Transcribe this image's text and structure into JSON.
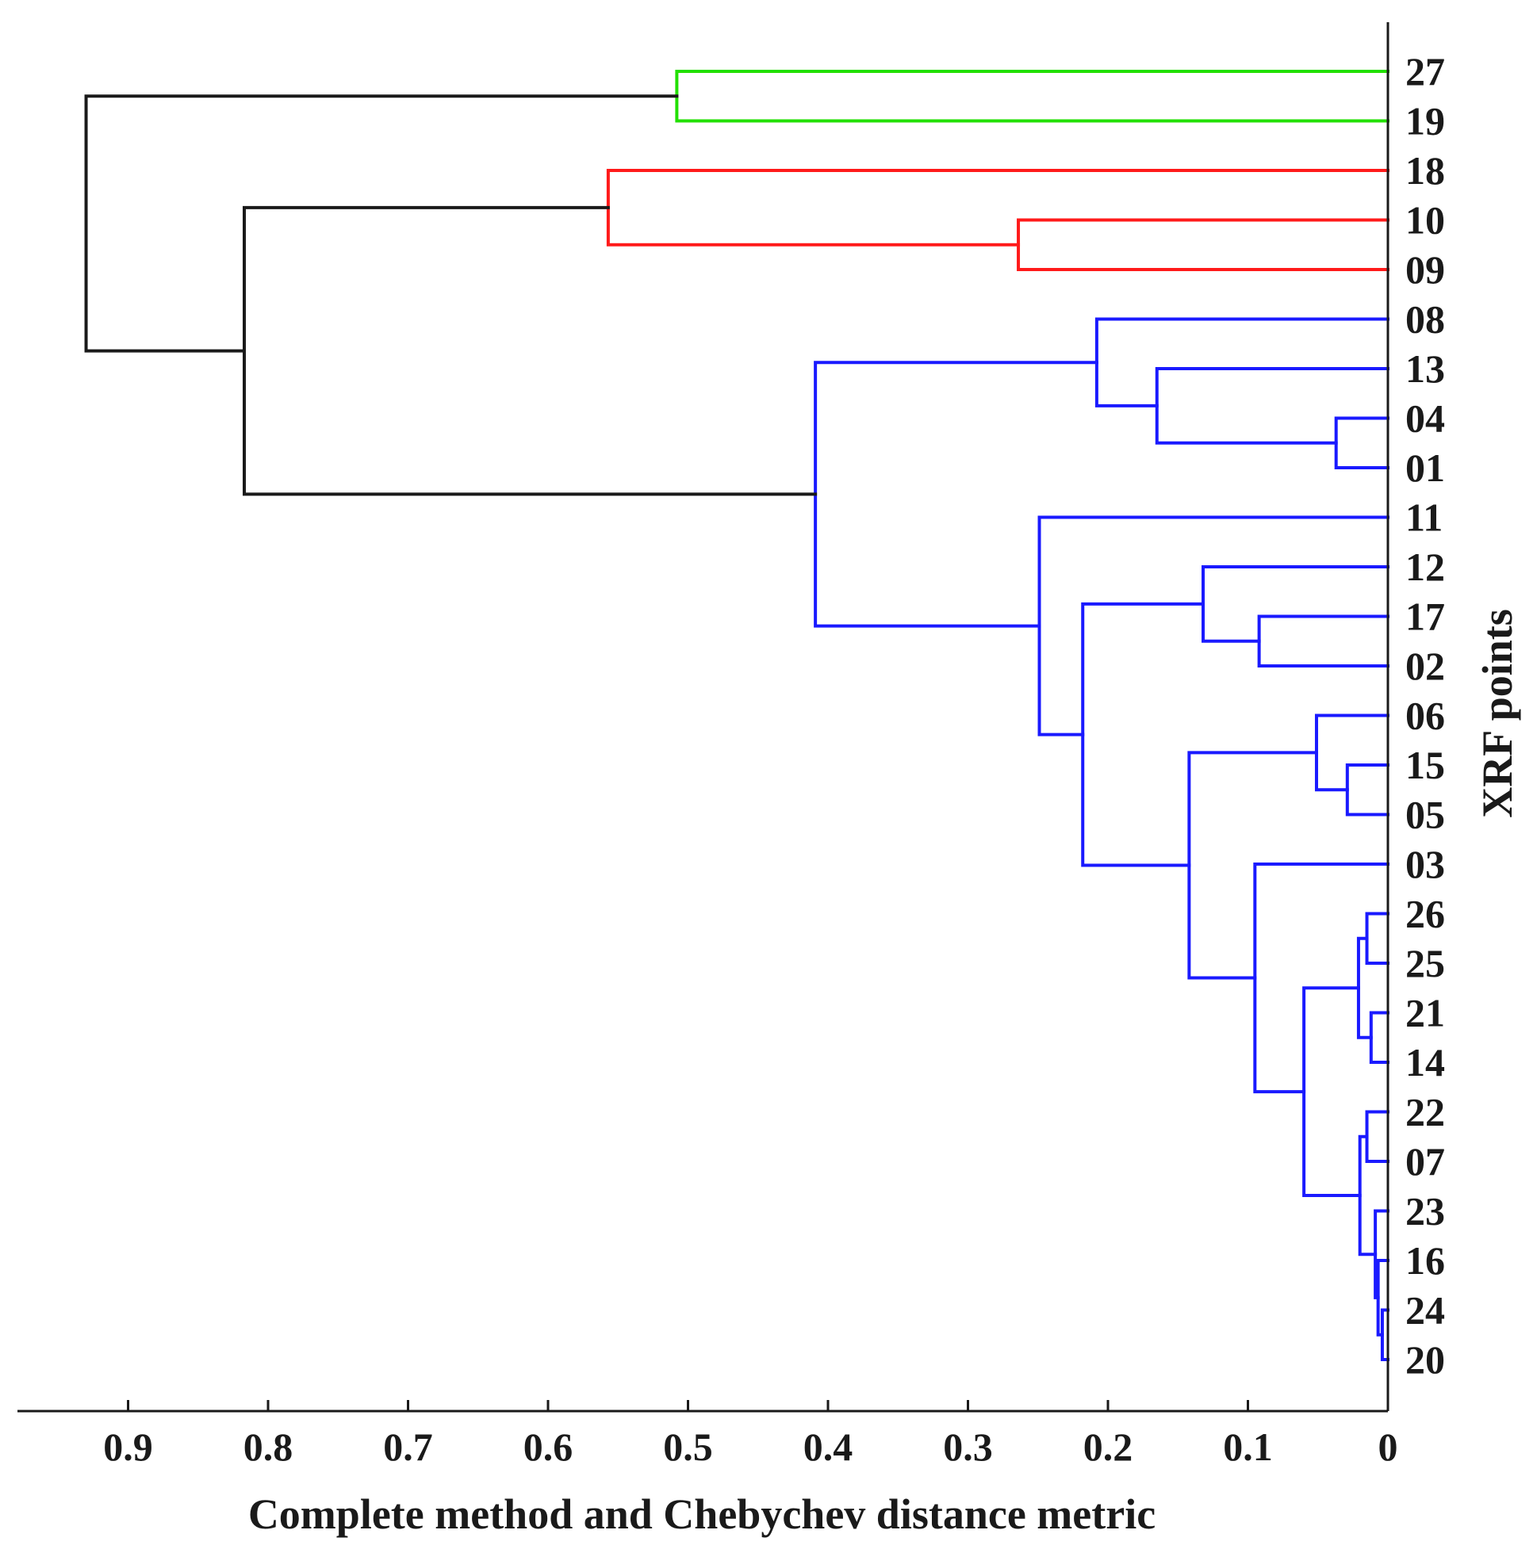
{
  "chart_data": {
    "type": "dendrogram",
    "xlabel": "Complete method and Chebychev distance metric",
    "ylabel": "XRF points",
    "xlim": [
      0,
      0.975
    ],
    "x_direction": "reversed",
    "x_ticks": [
      0.9,
      0.8,
      0.7,
      0.6,
      0.5,
      0.4,
      0.3,
      0.2,
      0.1,
      0
    ],
    "x_tick_labels": [
      "0.9",
      "0.8",
      "0.7",
      "0.6",
      "0.5",
      "0.4",
      "0.3",
      "0.2",
      "0.1",
      "0"
    ],
    "leaves": [
      "27",
      "19",
      "18",
      "10",
      "09",
      "08",
      "13",
      "04",
      "01",
      "11",
      "12",
      "17",
      "02",
      "06",
      "15",
      "05",
      "03",
      "26",
      "25",
      "21",
      "14",
      "22",
      "07",
      "23",
      "16",
      "24",
      "20"
    ],
    "colors": {
      "green": "#22e000",
      "red": "#ff1a1a",
      "blue": "#1a1aff",
      "black": "#1a1a1a"
    },
    "merges": [
      {
        "id": "m1",
        "left": "L0",
        "right": "L1",
        "height": 0.508,
        "color": "green"
      },
      {
        "id": "m2",
        "left": "L3",
        "right": "L4",
        "height": 0.264,
        "color": "red"
      },
      {
        "id": "m3",
        "left": "L2",
        "right": "m2",
        "height": 0.557,
        "color": "red"
      },
      {
        "id": "m4",
        "left": "L7",
        "right": "L8",
        "height": 0.037,
        "color": "blue"
      },
      {
        "id": "m5",
        "left": "L6",
        "right": "m4",
        "height": 0.165,
        "color": "blue"
      },
      {
        "id": "m6",
        "left": "L5",
        "right": "m5",
        "height": 0.208,
        "color": "blue"
      },
      {
        "id": "m7",
        "left": "L11",
        "right": "L12",
        "height": 0.092,
        "color": "blue"
      },
      {
        "id": "m8",
        "left": "L10",
        "right": "m7",
        "height": 0.132,
        "color": "blue"
      },
      {
        "id": "m9",
        "left": "L14",
        "right": "L15",
        "height": 0.029,
        "color": "blue"
      },
      {
        "id": "m10",
        "left": "L13",
        "right": "m9",
        "height": 0.051,
        "color": "blue"
      },
      {
        "id": "m11",
        "left": "L17",
        "right": "L18",
        "height": 0.015,
        "color": "blue"
      },
      {
        "id": "m12",
        "left": "L19",
        "right": "L20",
        "height": 0.012,
        "color": "blue"
      },
      {
        "id": "m13",
        "left": "m11",
        "right": "m12",
        "height": 0.021,
        "color": "blue"
      },
      {
        "id": "m14",
        "left": "L21",
        "right": "L22",
        "height": 0.015,
        "color": "blue"
      },
      {
        "id": "m15",
        "left": "L25",
        "right": "L26",
        "height": 0.004,
        "color": "blue"
      },
      {
        "id": "m16",
        "left": "L24",
        "right": "m15",
        "height": 0.007,
        "color": "blue"
      },
      {
        "id": "m17",
        "left": "L23",
        "right": "m16",
        "height": 0.009,
        "color": "blue"
      },
      {
        "id": "m18",
        "left": "m14",
        "right": "m17",
        "height": 0.02,
        "color": "blue"
      },
      {
        "id": "m19",
        "left": "m13",
        "right": "m18",
        "height": 0.06,
        "color": "blue"
      },
      {
        "id": "m20",
        "left": "L16",
        "right": "m19",
        "height": 0.095,
        "color": "blue"
      },
      {
        "id": "m21",
        "left": "m10",
        "right": "m20",
        "height": 0.142,
        "color": "blue"
      },
      {
        "id": "m22",
        "left": "m8",
        "right": "m21",
        "height": 0.218,
        "color": "blue"
      },
      {
        "id": "m23",
        "left": "L9",
        "right": "m22",
        "height": 0.249,
        "color": "blue"
      },
      {
        "id": "m24",
        "left": "m6",
        "right": "m23",
        "height": 0.409,
        "color": "blue"
      },
      {
        "id": "m25",
        "left": "m3",
        "right": "m24",
        "height": 0.817,
        "color": "black"
      },
      {
        "id": "m26",
        "left": "m1",
        "right": "m25",
        "height": 0.93,
        "color": "black"
      }
    ]
  }
}
